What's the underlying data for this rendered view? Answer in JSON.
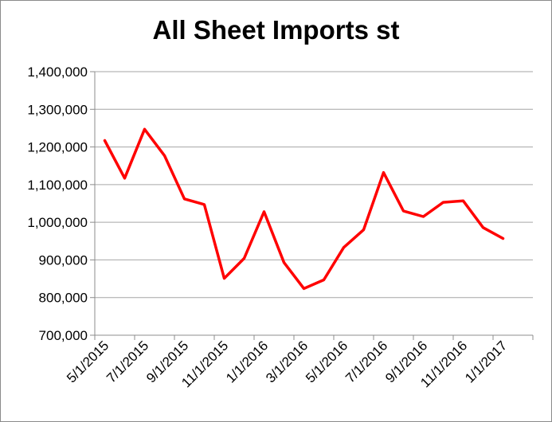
{
  "chart_data": {
    "type": "line",
    "title": "All Sheet Imports st",
    "xlabel": "",
    "ylabel": "",
    "x": [
      "5/1/2015",
      "6/1/2015",
      "7/1/2015",
      "8/1/2015",
      "9/1/2015",
      "10/1/2015",
      "11/1/2015",
      "12/1/2015",
      "1/1/2016",
      "2/1/2016",
      "3/1/2016",
      "4/1/2016",
      "5/1/2016",
      "6/1/2016",
      "7/1/2016",
      "8/1/2016",
      "9/1/2016",
      "10/1/2016",
      "11/1/2016",
      "12/1/2016",
      "1/1/2017",
      "2/1/2017"
    ],
    "series": [
      {
        "values": [
          1217000,
          1117000,
          1247000,
          1177000,
          1062000,
          1047000,
          851000,
          904000,
          1028000,
          893000,
          824000,
          847000,
          933000,
          980000,
          1132000,
          1030000,
          1015000,
          1053000,
          1057000,
          986000,
          957000,
          null
        ]
      }
    ],
    "x_tick_labels": [
      "5/1/2015",
      "7/1/2015",
      "9/1/2015",
      "11/1/2015",
      "1/1/2016",
      "3/1/2016",
      "5/1/2016",
      "7/1/2016",
      "9/1/2016",
      "11/1/2016",
      "1/1/2017"
    ],
    "y_tick_labels": [
      "700,000",
      "800,000",
      "900,000",
      "1,000,000",
      "1,100,000",
      "1,200,000",
      "1,300,000",
      "1,400,000"
    ],
    "ylim": [
      700000,
      1400000
    ],
    "grid": true,
    "legend": "none",
    "colors": {
      "line": "#ff0000",
      "grid": "#a6a6a6",
      "axis": "#8c8c8c"
    }
  }
}
